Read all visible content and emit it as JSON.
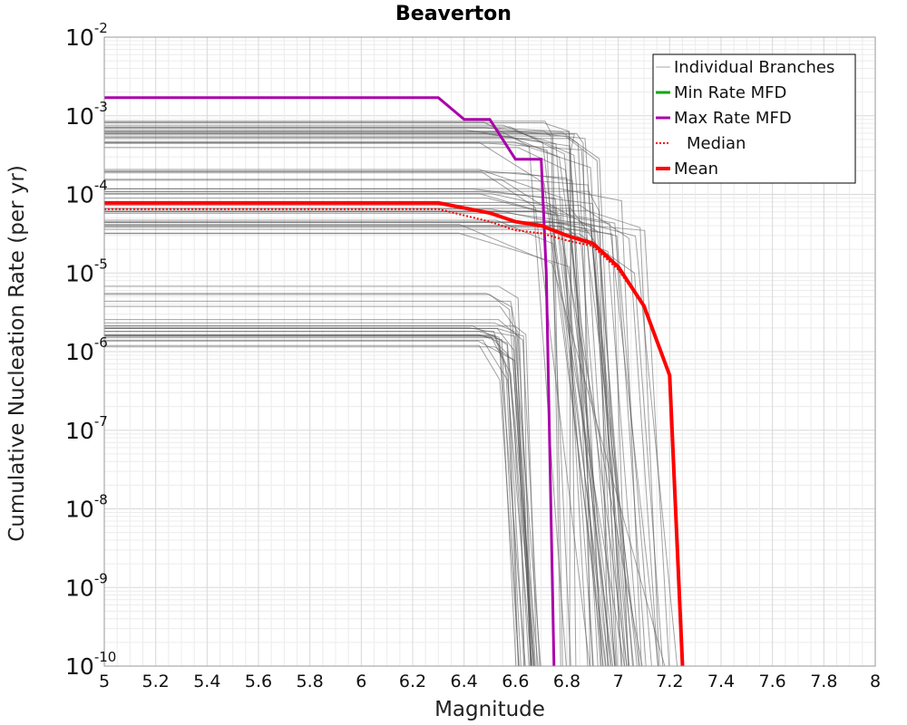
{
  "chart_data": {
    "type": "line",
    "title": "Beaverton",
    "xlabel": "Magnitude",
    "ylabel": "Cumulative Nucleation Rate (per yr)",
    "xlim": [
      5,
      8
    ],
    "ylim": [
      1e-10,
      0.01
    ],
    "yscale": "log",
    "grid": true,
    "legend_position": "top-right",
    "x_ticks": [
      "5",
      "5.2",
      "5.4",
      "5.6",
      "5.8",
      "6",
      "6.2",
      "6.4",
      "6.6",
      "6.8",
      "7",
      "7.2",
      "7.4",
      "7.6",
      "7.8",
      "8"
    ],
    "y_ticks": [
      {
        "base": "10",
        "exp": "-2"
      },
      {
        "base": "10",
        "exp": "-3"
      },
      {
        "base": "10",
        "exp": "-4"
      },
      {
        "base": "10",
        "exp": "-5"
      },
      {
        "base": "10",
        "exp": "-6"
      },
      {
        "base": "10",
        "exp": "-7"
      },
      {
        "base": "10",
        "exp": "-8"
      },
      {
        "base": "10",
        "exp": "-9"
      },
      {
        "base": "10",
        "exp": "-10"
      }
    ],
    "series": [
      {
        "name": "Individual Branches",
        "color": "#555555",
        "style": "thin",
        "groups": [
          {
            "y_rate": 0.0006,
            "count": 22,
            "spread_low": 0.00035,
            "spread_high": 0.001,
            "x_drop": [
              6.4,
              6.85
            ],
            "x_end": [
              6.75,
              7.05
            ]
          },
          {
            "y_rate": 5e-05,
            "count": 26,
            "spread_low": 2.8e-05,
            "spread_high": 0.00012,
            "x_drop": [
              6.3,
              6.9
            ],
            "x_end": [
              6.95,
              7.25
            ]
          },
          {
            "y_rate": 0.00015,
            "count": 6,
            "spread_low": 0.00013,
            "spread_high": 0.00022,
            "x_drop": [
              6.4,
              6.7
            ],
            "x_end": [
              6.85,
              7.1
            ]
          },
          {
            "y_rate": 4e-06,
            "count": 10,
            "spread_low": 2e-06,
            "spread_high": 7e-06,
            "x_drop": [
              6.4,
              6.6
            ],
            "x_end": [
              6.62,
              6.7
            ]
          },
          {
            "y_rate": 1.5e-06,
            "count": 14,
            "spread_low": 1e-06,
            "spread_high": 2e-06,
            "x_drop": [
              6.45,
              6.55
            ],
            "x_end": [
              6.6,
              6.68
            ]
          }
        ]
      },
      {
        "name": "Min Rate MFD",
        "color": "#00aa00",
        "style": "solid",
        "points": []
      },
      {
        "name": "Max Rate MFD",
        "color": "#aa00aa",
        "style": "solid",
        "points": [
          [
            5.0,
            0.0017
          ],
          [
            6.3,
            0.0017
          ],
          [
            6.4,
            0.0009
          ],
          [
            6.5,
            0.0009
          ],
          [
            6.6,
            0.00028
          ],
          [
            6.7,
            0.00028
          ],
          [
            6.72,
            1e-05
          ],
          [
            6.75,
            1e-10
          ]
        ]
      },
      {
        "name": "Median",
        "color": "#ff0000",
        "style": "dotted",
        "points": [
          [
            5.0,
            6.5e-05
          ],
          [
            6.3,
            6.5e-05
          ],
          [
            6.5,
            4.5e-05
          ],
          [
            6.6,
            3.5e-05
          ],
          [
            6.7,
            3.2e-05
          ],
          [
            6.8,
            2.6e-05
          ],
          [
            6.9,
            2.2e-05
          ],
          [
            7.0,
            1.1e-05
          ],
          [
            7.1,
            3.8e-06
          ],
          [
            7.2,
            5e-07
          ],
          [
            7.25,
            1e-10
          ]
        ]
      },
      {
        "name": "Mean",
        "color": "#ff0000",
        "style": "thick",
        "points": [
          [
            5.0,
            7.8e-05
          ],
          [
            6.3,
            7.8e-05
          ],
          [
            6.5,
            5.8e-05
          ],
          [
            6.6,
            4.5e-05
          ],
          [
            6.7,
            4e-05
          ],
          [
            6.8,
            3e-05
          ],
          [
            6.9,
            2.4e-05
          ],
          [
            7.0,
            1.2e-05
          ],
          [
            7.1,
            3.8e-06
          ],
          [
            7.2,
            5e-07
          ],
          [
            7.25,
            1e-10
          ]
        ]
      }
    ]
  }
}
